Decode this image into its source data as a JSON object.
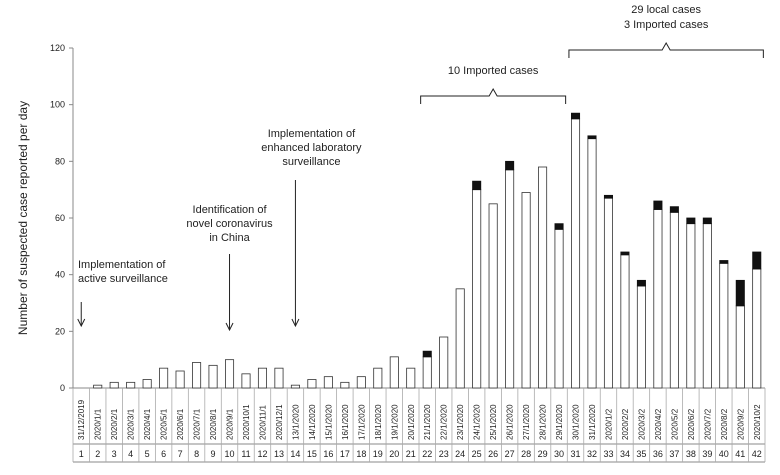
{
  "chart_data": {
    "type": "bar",
    "stacked": true,
    "ylabel": "Number of suspected case reported per day",
    "ylim": [
      0,
      120
    ],
    "yticks": [
      0,
      20,
      40,
      60,
      80,
      100,
      120
    ],
    "grid": false,
    "legend": "none",
    "days": [
      1,
      2,
      3,
      4,
      5,
      6,
      7,
      8,
      9,
      10,
      11,
      12,
      13,
      14,
      15,
      16,
      17,
      18,
      19,
      20,
      21,
      22,
      23,
      24,
      25,
      26,
      27,
      28,
      29,
      30,
      31,
      32,
      33,
      34,
      35,
      36,
      37,
      38,
      39,
      40,
      41,
      42
    ],
    "categories": [
      "31/12/2019",
      "2020/1/1",
      "2020/2/1",
      "2020/3/1",
      "2020/4/1",
      "2020/5/1",
      "2020/6/1",
      "2020/7/1",
      "2020/8/1",
      "2020/9/1",
      "2020/10/1",
      "2020/11/1",
      "2020/12/1",
      "13/1/2020",
      "14/1/2020",
      "15/1/2020",
      "16/1/2020",
      "17/1/2020",
      "18/1/2020",
      "19/1/2020",
      "20/1/2020",
      "21/1/2020",
      "22/1/2020",
      "23/1/2020",
      "24/1/2020",
      "25/1/2020",
      "26/1/2020",
      "27/1/2020",
      "28/1/2020",
      "29/1/2020",
      "30/1/2020",
      "31/1/2020",
      "2020/1/2",
      "2020/2/2",
      "2020/3/2",
      "2020/4/2",
      "2020/5/2",
      "2020/6/2",
      "2020/7/2",
      "2020/8/2",
      "2020/9/2",
      "2020/10/2"
    ],
    "series": [
      {
        "values": [
          0,
          1,
          2,
          2,
          3,
          7,
          6,
          9,
          8,
          10,
          5,
          7,
          7,
          1,
          3,
          4,
          2,
          4,
          7,
          11,
          7,
          11,
          18,
          35,
          70,
          65,
          77,
          69,
          78,
          56,
          95,
          88,
          67,
          47,
          36,
          63,
          62,
          58,
          58,
          44,
          29,
          42
        ],
        "color": "#ffffff",
        "stroke": "#333333"
      },
      {
        "values": [
          0,
          0,
          0,
          0,
          0,
          0,
          0,
          0,
          0,
          0,
          0,
          0,
          0,
          0,
          0,
          0,
          0,
          0,
          0,
          0,
          0,
          2,
          0,
          0,
          3,
          0,
          3,
          0,
          0,
          2,
          2,
          1,
          1,
          1,
          2,
          3,
          2,
          2,
          2,
          1,
          9,
          6
        ],
        "color": "#111111"
      }
    ],
    "annotations": [
      {
        "lines": [
          "Implementation of",
          "active surveillance"
        ],
        "day": 1
      },
      {
        "lines": [
          "Identification of",
          "novel coronavirus",
          "in China"
        ],
        "day": 10
      },
      {
        "lines": [
          "Implementation of",
          "enhanced laboratory",
          "surveillance"
        ],
        "day": 14
      }
    ],
    "brackets": [
      {
        "lines": [
          "10 Imported cases"
        ],
        "from_day": 22,
        "to_day": 30
      },
      {
        "lines": [
          "29 local cases",
          "3 Imported cases"
        ],
        "from_day": 31,
        "to_day": 42
      }
    ]
  }
}
